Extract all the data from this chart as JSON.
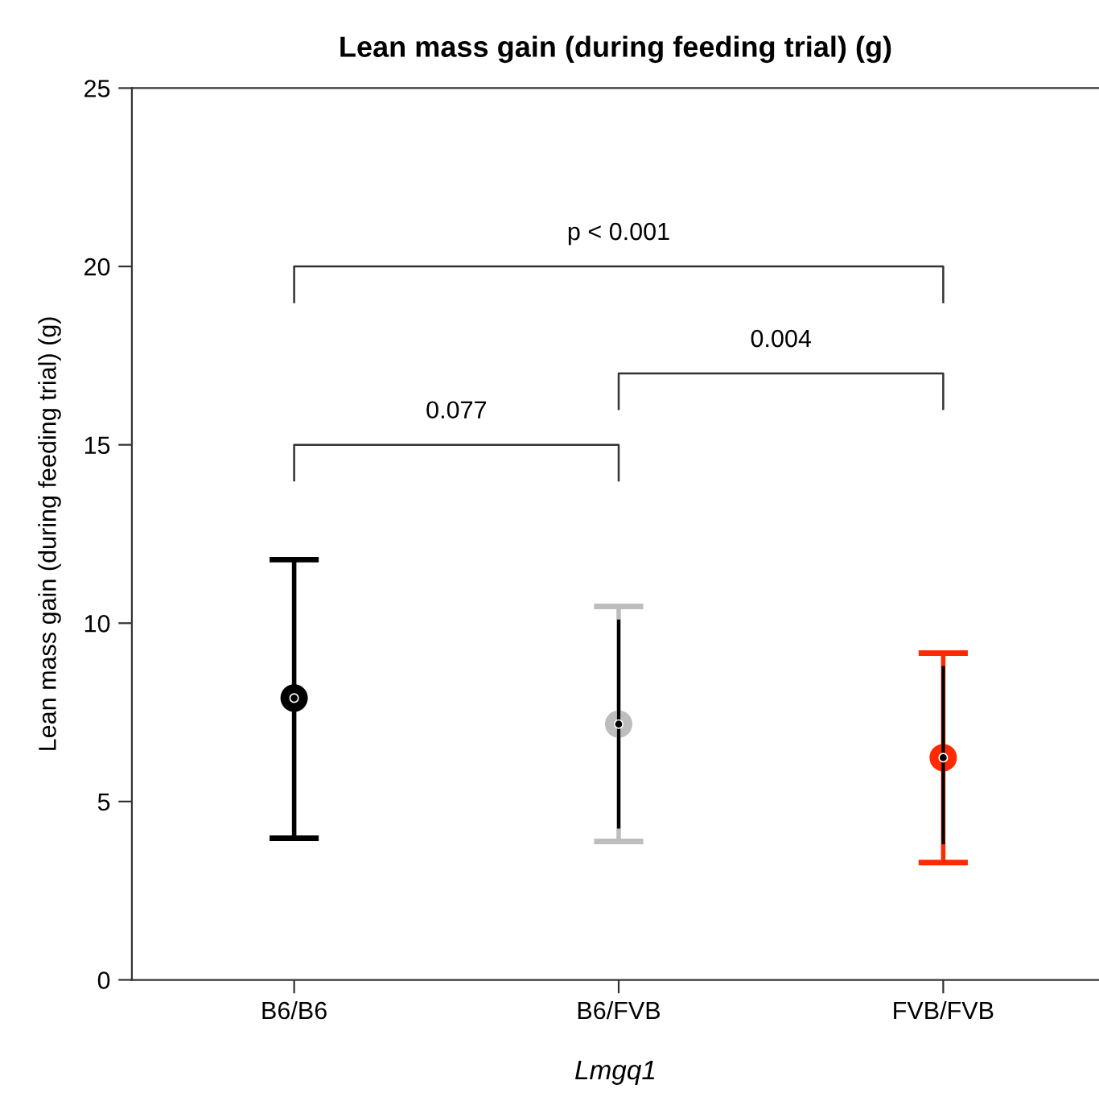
{
  "chart_data": {
    "type": "scatter",
    "title": "Lean mass gain (during feeding trial) (g)",
    "xlabel": "Lmgq1",
    "ylabel": "Lean mass gain (during feeding trial) (g)",
    "categories": [
      "B6/B6",
      "B6/FVB",
      "FVB/FVB"
    ],
    "series": [
      {
        "colors": [
          "#000000",
          "#bdbdbd",
          "#ff2a00"
        ],
        "values": [
          7.9,
          7.17,
          6.23
        ],
        "errors": [
          [
            3.97,
            11.78
          ],
          [
            3.88,
            10.47
          ],
          [
            3.29,
            9.16
          ]
        ],
        "marker": "circle"
      },
      {
        "color": "#000000",
        "values": [
          7.9,
          7.17,
          6.23
        ],
        "errors": [
          [
            4.8,
            10.9
          ],
          [
            4.24,
            10.1
          ],
          [
            3.8,
            8.8
          ]
        ],
        "marker": "circle"
      }
    ],
    "ylim": [
      0,
      25
    ],
    "yticks": [
      0,
      5,
      10,
      15,
      20,
      25
    ],
    "grid": false,
    "legend": false,
    "annotations": [
      "p < 0.001",
      "0.004",
      "0.077"
    ]
  }
}
